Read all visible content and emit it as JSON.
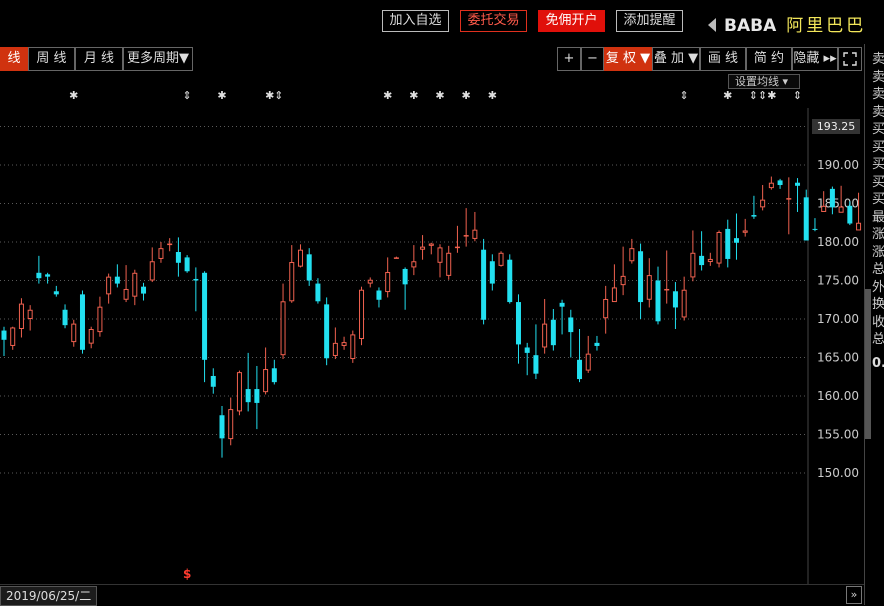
{
  "header": {
    "buttons": [
      {
        "label": "加入自选",
        "style": "plain"
      },
      {
        "label": "委托交易",
        "style": "red-outline"
      },
      {
        "label": "免佣开户",
        "style": "red-fill"
      },
      {
        "label": "添加提醒",
        "style": "plain"
      }
    ],
    "ticker": "BABA",
    "company": "阿里巴巴"
  },
  "toolbar": {
    "period_active": "线",
    "week": "周 线",
    "month": "月 线",
    "more": "更多周期▼",
    "plus": "+",
    "minus": "−",
    "adjust": "复 权 ▼",
    "overlay": "叠 加 ▼",
    "draw": "画 线",
    "agreement": "简 约",
    "hide": "隐藏 ▸▸"
  },
  "ma_settings": "设置均线 ▾",
  "price_tag": "193.25",
  "date_label": "2019/06/25/二",
  "right_panel": [
    "卖",
    "卖",
    "卖",
    "卖",
    "买",
    "买",
    "买",
    "买",
    "买",
    "最",
    "涨",
    "涨",
    "总",
    "外",
    "换",
    "收",
    "总"
  ],
  "right_panel_value": "0.",
  "colors": {
    "up": "#f0614f",
    "down": "#22e0f0",
    "grid": "#5a5a5a",
    "marker": "#e0e0e0",
    "dividend": "#ff3b2f"
  },
  "chart_data": {
    "type": "candlestick",
    "ylim": [
      147,
      196
    ],
    "yticks": [
      150.0,
      155.0,
      160.0,
      165.0,
      170.0,
      175.0,
      180.0,
      185.0,
      190.0,
      195.0
    ],
    "candles": [
      [
        168.5,
        167.3,
        169.0,
        165.2
      ],
      [
        166.5,
        168.9,
        169.0,
        166.0
      ],
      [
        168.7,
        172.0,
        172.7,
        167.6
      ],
      [
        170.0,
        171.2,
        171.8,
        168.5
      ],
      [
        176.0,
        175.3,
        178.2,
        174.6
      ],
      [
        175.8,
        175.5,
        176.0,
        174.6
      ],
      [
        173.6,
        173.2,
        174.3,
        172.9
      ],
      [
        171.2,
        169.2,
        171.9,
        168.8
      ],
      [
        167.0,
        169.4,
        169.9,
        166.4
      ],
      [
        173.2,
        166.0,
        173.7,
        165.5
      ],
      [
        166.8,
        168.7,
        169.0,
        166.2
      ],
      [
        168.3,
        171.6,
        172.9,
        167.7
      ],
      [
        173.2,
        175.5,
        175.9,
        172.0
      ],
      [
        175.5,
        174.6,
        177.1,
        174.1
      ],
      [
        172.5,
        173.9,
        177.0,
        172.2
      ],
      [
        172.9,
        176.0,
        176.4,
        171.8
      ],
      [
        174.2,
        173.3,
        174.7,
        172.4
      ],
      [
        175.0,
        177.5,
        179.3,
        174.8
      ],
      [
        177.8,
        179.2,
        180.0,
        177.3
      ],
      [
        179.6,
        179.8,
        180.5,
        178.8
      ],
      [
        178.7,
        177.3,
        180.6,
        175.5
      ],
      [
        178.0,
        176.2,
        178.3,
        176.0
      ],
      [
        175.2,
        175.0,
        176.7,
        171.0
      ],
      [
        176.0,
        164.7,
        176.2,
        161.8
      ],
      [
        162.6,
        161.2,
        163.6,
        160.3
      ],
      [
        157.5,
        154.5,
        158.7,
        152.0
      ],
      [
        154.4,
        158.3,
        159.8,
        153.6
      ],
      [
        158.0,
        163.1,
        163.3,
        157.5
      ],
      [
        160.9,
        159.2,
        165.6,
        158.0
      ],
      [
        160.9,
        159.1,
        163.9,
        155.7
      ],
      [
        160.5,
        163.5,
        166.3,
        160.2
      ],
      [
        163.6,
        161.8,
        164.7,
        161.5
      ],
      [
        165.3,
        172.3,
        174.6,
        164.8
      ],
      [
        172.3,
        177.4,
        179.6,
        172.1
      ],
      [
        176.8,
        179.0,
        179.7,
        176.7
      ],
      [
        178.4,
        175.0,
        179.2,
        174.3
      ],
      [
        174.6,
        172.3,
        175.3,
        172.0
      ],
      [
        171.9,
        164.9,
        172.8,
        164.0
      ],
      [
        165.2,
        166.9,
        168.9,
        164.8
      ],
      [
        166.5,
        167.0,
        167.7,
        166.0
      ],
      [
        164.8,
        168.0,
        168.5,
        164.3
      ],
      [
        167.4,
        173.8,
        174.2,
        166.6
      ],
      [
        174.6,
        175.1,
        175.4,
        174.1
      ],
      [
        173.7,
        172.5,
        174.1,
        171.5
      ],
      [
        173.5,
        176.1,
        178.0,
        172.8
      ],
      [
        178.0,
        178.0,
        178.1,
        177.9
      ],
      [
        176.5,
        174.5,
        176.7,
        171.2
      ],
      [
        176.7,
        177.5,
        179.6,
        175.7
      ],
      [
        179.0,
        179.4,
        180.9,
        177.7
      ],
      [
        179.5,
        179.8,
        179.9,
        178.4
      ],
      [
        177.3,
        179.3,
        179.7,
        175.4
      ],
      [
        175.6,
        178.6,
        179.5,
        175.1
      ],
      [
        179.4,
        179.4,
        182.1,
        178.6
      ],
      [
        180.8,
        180.9,
        184.4,
        179.4
      ],
      [
        180.4,
        181.6,
        183.9,
        180.1
      ],
      [
        179.0,
        169.9,
        180.4,
        169.3
      ],
      [
        177.5,
        174.6,
        178.4,
        173.7
      ],
      [
        176.9,
        178.6,
        178.8,
        176.8
      ],
      [
        177.7,
        172.2,
        178.4,
        172.0
      ],
      [
        172.2,
        166.7,
        173.2,
        164.2
      ],
      [
        166.3,
        165.6,
        166.9,
        162.7
      ],
      [
        165.3,
        162.9,
        169.3,
        162.2
      ],
      [
        166.3,
        169.4,
        172.6,
        165.5
      ],
      [
        169.9,
        166.6,
        171.3,
        165.9
      ],
      [
        172.1,
        171.6,
        172.5,
        168.0
      ],
      [
        170.2,
        168.3,
        171.2,
        165.0
      ],
      [
        164.7,
        162.2,
        168.7,
        161.8
      ],
      [
        163.3,
        165.5,
        167.8,
        163.0
      ],
      [
        166.9,
        166.5,
        167.8,
        165.9
      ],
      [
        170.1,
        172.6,
        174.3,
        168.1
      ],
      [
        172.2,
        174.1,
        177.1,
        172.3
      ],
      [
        174.4,
        175.6,
        179.4,
        173.1
      ],
      [
        177.5,
        179.2,
        180.4,
        177.2
      ],
      [
        178.8,
        172.2,
        179.8,
        170.0
      ],
      [
        172.5,
        175.7,
        177.9,
        171.5
      ],
      [
        175.0,
        169.7,
        176.8,
        169.3
      ],
      [
        173.8,
        173.9,
        178.9,
        172.0
      ],
      [
        173.6,
        171.5,
        174.8,
        168.7
      ],
      [
        170.2,
        173.8,
        175.5,
        169.8
      ],
      [
        175.4,
        178.6,
        181.5,
        174.9
      ],
      [
        178.2,
        177.0,
        181.4,
        176.3
      ],
      [
        177.4,
        177.8,
        178.6,
        176.9
      ],
      [
        177.2,
        181.3,
        181.5,
        176.7
      ],
      [
        181.7,
        177.8,
        182.9,
        176.7
      ],
      [
        180.5,
        179.9,
        183.7,
        177.7
      ],
      [
        181.2,
        181.5,
        183.0,
        180.7
      ],
      [
        183.5,
        183.3,
        186.0,
        183.0
      ],
      [
        184.5,
        185.5,
        187.4,
        184.1
      ],
      [
        187.0,
        187.7,
        188.5,
        186.8
      ],
      [
        188.0,
        187.4,
        188.2,
        186.9
      ],
      [
        185.6,
        185.7,
        188.4,
        181.0
      ],
      [
        187.7,
        187.3,
        188.3,
        183.9
      ],
      [
        185.8,
        180.2,
        186.8,
        180.9
      ],
      [
        181.7,
        181.6,
        183.1,
        181.4
      ],
      [
        183.9,
        184.7,
        186.6,
        184.1
      ],
      [
        186.9,
        184.5,
        187.2,
        183.6
      ],
      [
        183.8,
        184.6,
        187.3,
        183.9
      ],
      [
        184.7,
        182.4,
        185.3,
        182.2
      ],
      [
        181.5,
        182.5,
        186.4,
        182.1
      ],
      [
        185.1,
        186.6,
        187.3,
        184.4
      ],
      [
        187.7,
        190.1,
        190.6,
        186.8
      ]
    ],
    "markers": [
      {
        "i": 8,
        "sym": "✱"
      },
      {
        "i": 21,
        "sym": "⇕"
      },
      {
        "i": 25,
        "sym": "✱"
      },
      {
        "i": 31,
        "sym": "✱⇕"
      },
      {
        "i": 44,
        "sym": "✱"
      },
      {
        "i": 47,
        "sym": "✱"
      },
      {
        "i": 50,
        "sym": "✱"
      },
      {
        "i": 53,
        "sym": "✱"
      },
      {
        "i": 56,
        "sym": "✱"
      },
      {
        "i": 78,
        "sym": "⇕"
      },
      {
        "i": 83,
        "sym": "✱"
      },
      {
        "i": 87,
        "sym": "⇕⇕✱"
      },
      {
        "i": 91,
        "sym": "⇕"
      }
    ],
    "dividend_marker": {
      "i": 21,
      "sym": "$"
    }
  }
}
